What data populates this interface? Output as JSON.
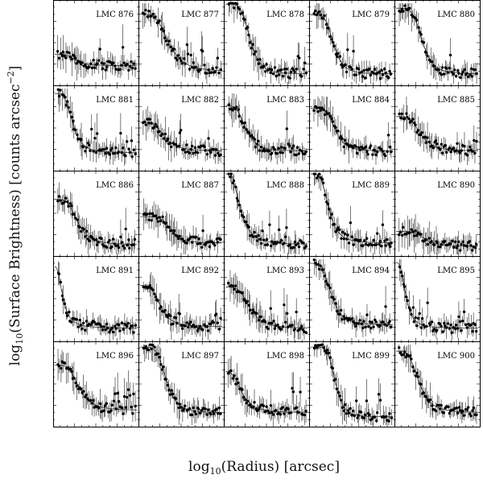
{
  "chart_data": {
    "type": "scatter",
    "layout": "5x5 grid of small-multiple panels",
    "xlabel": {
      "prefix": "log",
      "sub": "10",
      "suffix": "(Radius) [arcsec]"
    },
    "ylabel": {
      "prefix": "log",
      "sub": "10",
      "suffix": "(Surface Brightness) [counts arcsec",
      "sup": "−2",
      "end": "]"
    },
    "tick_labels": "none",
    "grid": false,
    "series": [
      "points with vertical error bars",
      "fitted profile curve"
    ],
    "panels": [
      {
        "label": "LMC 876",
        "profile": {
          "bg": 0.22,
          "amp": 0.14,
          "core": 0.25,
          "slope": 4
        }
      },
      {
        "label": "LMC 877",
        "profile": {
          "bg": 0.15,
          "amp": 0.7,
          "core": 0.35,
          "slope": 4
        }
      },
      {
        "label": "LMC 878",
        "profile": {
          "bg": 0.12,
          "amp": 0.85,
          "core": 0.3,
          "slope": 5
        }
      },
      {
        "label": "LMC 879",
        "profile": {
          "bg": 0.12,
          "amp": 0.72,
          "core": 0.28,
          "slope": 5
        }
      },
      {
        "label": "LMC 880",
        "profile": {
          "bg": 0.12,
          "amp": 0.8,
          "core": 0.32,
          "slope": 5
        }
      },
      {
        "label": "LMC 881",
        "profile": {
          "bg": 0.2,
          "amp": 0.72,
          "core": 0.22,
          "slope": 4
        }
      },
      {
        "label": "LMC 882",
        "profile": {
          "bg": 0.22,
          "amp": 0.35,
          "core": 0.3,
          "slope": 4
        }
      },
      {
        "label": "LMC 883",
        "profile": {
          "bg": 0.22,
          "amp": 0.55,
          "core": 0.25,
          "slope": 4
        }
      },
      {
        "label": "LMC 884",
        "profile": {
          "bg": 0.22,
          "amp": 0.52,
          "core": 0.3,
          "slope": 5
        }
      },
      {
        "label": "LMC 885",
        "profile": {
          "bg": 0.22,
          "amp": 0.42,
          "core": 0.3,
          "slope": 4
        }
      },
      {
        "label": "LMC 886",
        "profile": {
          "bg": 0.12,
          "amp": 0.55,
          "core": 0.28,
          "slope": 4
        }
      },
      {
        "label": "LMC 887",
        "profile": {
          "bg": 0.14,
          "amp": 0.32,
          "core": 0.38,
          "slope": 6
        }
      },
      {
        "label": "LMC 888",
        "profile": {
          "bg": 0.12,
          "amp": 0.9,
          "core": 0.18,
          "slope": 3
        }
      },
      {
        "label": "LMC 889",
        "profile": {
          "bg": 0.14,
          "amp": 0.85,
          "core": 0.22,
          "slope": 4
        }
      },
      {
        "label": "LMC 890",
        "profile": {
          "bg": 0.1,
          "amp": 0.18,
          "core": 0.35,
          "slope": 5
        }
      },
      {
        "label": "LMC 891",
        "profile": {
          "bg": 0.14,
          "amp": 0.75,
          "core": 0.1,
          "slope": 2.5
        }
      },
      {
        "label": "LMC 892",
        "profile": {
          "bg": 0.16,
          "amp": 0.5,
          "core": 0.25,
          "slope": 4
        }
      },
      {
        "label": "LMC 893",
        "profile": {
          "bg": 0.14,
          "amp": 0.5,
          "core": 0.3,
          "slope": 4
        }
      },
      {
        "label": "LMC 894",
        "profile": {
          "bg": 0.18,
          "amp": 0.75,
          "core": 0.25,
          "slope": 4
        }
      },
      {
        "label": "LMC 895",
        "profile": {
          "bg": 0.14,
          "amp": 0.8,
          "core": 0.12,
          "slope": 3
        }
      },
      {
        "label": "LMC 896",
        "profile": {
          "bg": 0.18,
          "amp": 0.55,
          "core": 0.3,
          "slope": 4
        }
      },
      {
        "label": "LMC 897",
        "profile": {
          "bg": 0.15,
          "amp": 0.8,
          "core": 0.32,
          "slope": 5
        }
      },
      {
        "label": "LMC 898",
        "profile": {
          "bg": 0.15,
          "amp": 0.5,
          "core": 0.2,
          "slope": 3
        }
      },
      {
        "label": "LMC 899",
        "profile": {
          "bg": 0.1,
          "amp": 0.85,
          "core": 0.3,
          "slope": 6
        }
      },
      {
        "label": "LMC 900",
        "profile": {
          "bg": 0.15,
          "amp": 0.75,
          "core": 0.28,
          "slope": 4
        }
      }
    ]
  }
}
